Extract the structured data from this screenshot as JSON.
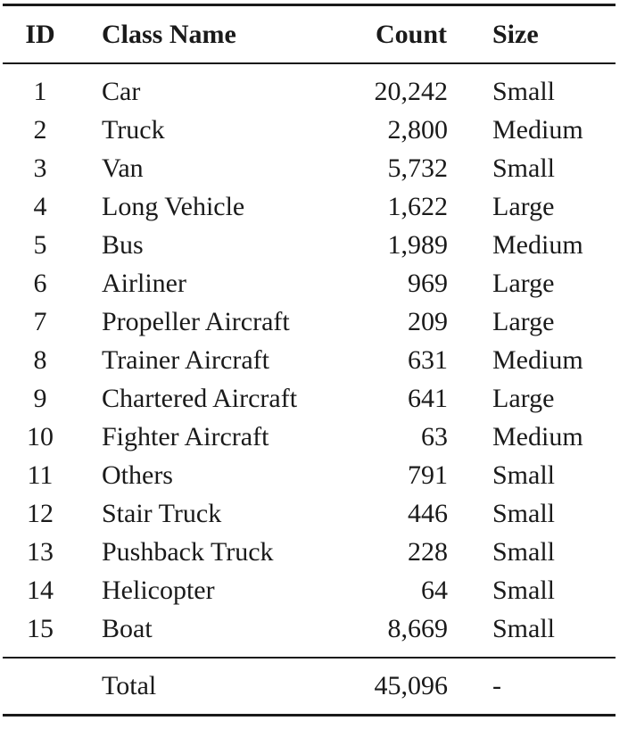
{
  "table": {
    "headers": {
      "id": "ID",
      "class_name": "Class Name",
      "count": "Count",
      "size": "Size"
    },
    "rows": [
      {
        "id": "1",
        "class_name": "Car",
        "count": "20,242",
        "size": "Small"
      },
      {
        "id": "2",
        "class_name": "Truck",
        "count": "2,800",
        "size": "Medium"
      },
      {
        "id": "3",
        "class_name": "Van",
        "count": "5,732",
        "size": "Small"
      },
      {
        "id": "4",
        "class_name": "Long Vehicle",
        "count": "1,622",
        "size": "Large"
      },
      {
        "id": "5",
        "class_name": "Bus",
        "count": "1,989",
        "size": "Medium"
      },
      {
        "id": "6",
        "class_name": "Airliner",
        "count": "969",
        "size": "Large"
      },
      {
        "id": "7",
        "class_name": "Propeller Aircraft",
        "count": "209",
        "size": "Large"
      },
      {
        "id": "8",
        "class_name": "Trainer Aircraft",
        "count": "631",
        "size": "Medium"
      },
      {
        "id": "9",
        "class_name": "Chartered Aircraft",
        "count": "641",
        "size": "Large"
      },
      {
        "id": "10",
        "class_name": "Fighter Aircraft",
        "count": "63",
        "size": "Medium"
      },
      {
        "id": "11",
        "class_name": "Others",
        "count": "791",
        "size": "Small"
      },
      {
        "id": "12",
        "class_name": "Stair Truck",
        "count": "446",
        "size": "Small"
      },
      {
        "id": "13",
        "class_name": "Pushback Truck",
        "count": "228",
        "size": "Small"
      },
      {
        "id": "14",
        "class_name": "Helicopter",
        "count": "64",
        "size": "Small"
      },
      {
        "id": "15",
        "class_name": "Boat",
        "count": "8,669",
        "size": "Small"
      }
    ],
    "total": {
      "label": "Total",
      "count": "45,096",
      "size": "-"
    }
  }
}
